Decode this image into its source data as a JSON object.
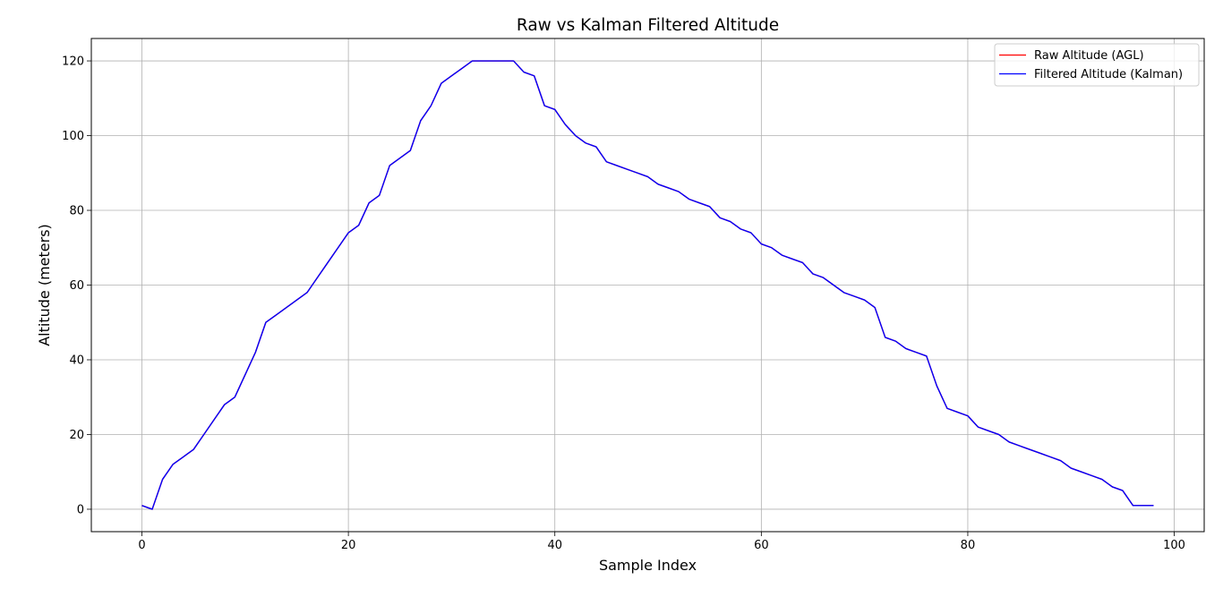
{
  "chart_data": {
    "type": "line",
    "title": "Raw vs Kalman Filtered Altitude",
    "xlabel": "Sample Index",
    "ylabel": "Altitude (meters)",
    "xlim": [
      -4.9,
      102.9
    ],
    "ylim": [
      -6,
      126
    ],
    "xticks": [
      0,
      20,
      40,
      60,
      80,
      100
    ],
    "yticks": [
      0,
      20,
      40,
      60,
      80,
      100,
      120
    ],
    "grid": true,
    "legend_position": "top-right",
    "x": [
      0,
      1,
      2,
      3,
      4,
      5,
      6,
      7,
      8,
      9,
      10,
      11,
      12,
      13,
      14,
      15,
      16,
      17,
      18,
      19,
      20,
      21,
      22,
      23,
      24,
      25,
      26,
      27,
      28,
      29,
      30,
      31,
      32,
      33,
      34,
      35,
      36,
      37,
      38,
      39,
      40,
      41,
      42,
      43,
      44,
      45,
      46,
      47,
      48,
      49,
      50,
      51,
      52,
      53,
      54,
      55,
      56,
      57,
      58,
      59,
      60,
      61,
      62,
      63,
      64,
      65,
      66,
      67,
      68,
      69,
      70,
      71,
      72,
      73,
      74,
      75,
      76,
      77,
      78,
      79,
      80,
      81,
      82,
      83,
      84,
      85,
      86,
      87,
      88,
      89,
      90,
      91,
      92,
      93,
      94,
      95,
      96,
      97,
      98
    ],
    "series": [
      {
        "name": "Raw Altitude (AGL)",
        "color": "#ff0000",
        "values": [
          1,
          0,
          8,
          12,
          14,
          16,
          20,
          24,
          28,
          30,
          36,
          42,
          50,
          52,
          54,
          56,
          58,
          62,
          66,
          70,
          74,
          76,
          82,
          84,
          92,
          94,
          96,
          104,
          108,
          114,
          116,
          118,
          120,
          120,
          120,
          120,
          120,
          117,
          116,
          108,
          107,
          103,
          100,
          98,
          97,
          93,
          92,
          91,
          90,
          89,
          87,
          86,
          85,
          83,
          82,
          81,
          78,
          77,
          75,
          74,
          71,
          70,
          68,
          67,
          66,
          63,
          62,
          60,
          58,
          57,
          56,
          54,
          46,
          45,
          43,
          42,
          41,
          33,
          27,
          26,
          25,
          22,
          21,
          20,
          18,
          17,
          16,
          15,
          14,
          13,
          11,
          10,
          9,
          8,
          6,
          5,
          1,
          1,
          1
        ]
      },
      {
        "name": "Filtered Altitude (Kalman)",
        "color": "#0000ff",
        "values": [
          1,
          0,
          8,
          12,
          14,
          16,
          20,
          24,
          28,
          30,
          36,
          42,
          50,
          52,
          54,
          56,
          58,
          62,
          66,
          70,
          74,
          76,
          82,
          84,
          92,
          94,
          96,
          104,
          108,
          114,
          116,
          118,
          120,
          120,
          120,
          120,
          120,
          117,
          116,
          108,
          107,
          103,
          100,
          98,
          97,
          93,
          92,
          91,
          90,
          89,
          87,
          86,
          85,
          83,
          82,
          81,
          78,
          77,
          75,
          74,
          71,
          70,
          68,
          67,
          66,
          63,
          62,
          60,
          58,
          57,
          56,
          54,
          46,
          45,
          43,
          42,
          41,
          33,
          27,
          26,
          25,
          22,
          21,
          20,
          18,
          17,
          16,
          15,
          14,
          13,
          11,
          10,
          9,
          8,
          6,
          5,
          1,
          1,
          1
        ]
      }
    ]
  }
}
